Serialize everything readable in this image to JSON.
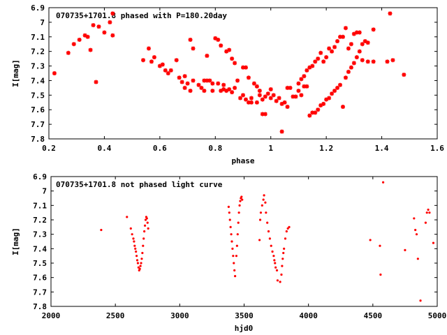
{
  "chart_data": [
    {
      "type": "scatter",
      "title": "070735+1701.8 phased with P=180.20day",
      "xlabel": "phase",
      "ylabel": "I[mag]",
      "xlim": [
        0.2,
        1.6
      ],
      "ylim": [
        7.8,
        6.9
      ],
      "y_inverted": true,
      "xticks": [
        0.2,
        0.4,
        0.6,
        0.8,
        1.0,
        1.2,
        1.4,
        1.6
      ],
      "xtick_labels": [
        "0.2",
        "0.4",
        "0.6",
        "0.8",
        "1",
        "1.2",
        "1.4",
        "1.6"
      ],
      "yticks": [
        6.9,
        7.0,
        7.1,
        7.2,
        7.3,
        7.4,
        7.5,
        7.6,
        7.7,
        7.8
      ],
      "ytick_labels": [
        "6.9",
        "7",
        "7.1",
        "7.2",
        "7.3",
        "7.4",
        "7.5",
        "7.6",
        "7.7",
        "7.8"
      ],
      "grid": false,
      "marker": "star",
      "color": "#ff0000",
      "points": [
        [
          0.22,
          7.35
        ],
        [
          0.27,
          7.21
        ],
        [
          0.29,
          7.15
        ],
        [
          0.31,
          7.12
        ],
        [
          0.33,
          7.09
        ],
        [
          0.34,
          7.1
        ],
        [
          0.35,
          7.19
        ],
        [
          0.36,
          7.02
        ],
        [
          0.37,
          7.41
        ],
        [
          0.38,
          7.03
        ],
        [
          0.4,
          7.07
        ],
        [
          0.42,
          7.0
        ],
        [
          0.43,
          7.09
        ],
        [
          0.43,
          6.94
        ],
        [
          0.54,
          7.26
        ],
        [
          0.56,
          7.18
        ],
        [
          0.57,
          7.27
        ],
        [
          0.58,
          7.24
        ],
        [
          0.6,
          7.3
        ],
        [
          0.61,
          7.29
        ],
        [
          0.62,
          7.33
        ],
        [
          0.63,
          7.35
        ],
        [
          0.64,
          7.33
        ],
        [
          0.66,
          7.26
        ],
        [
          0.67,
          7.38
        ],
        [
          0.68,
          7.41
        ],
        [
          0.69,
          7.37
        ],
        [
          0.69,
          7.45
        ],
        [
          0.7,
          7.42
        ],
        [
          0.71,
          7.47
        ],
        [
          0.71,
          7.12
        ],
        [
          0.72,
          7.4
        ],
        [
          0.72,
          7.18
        ],
        [
          0.74,
          7.43
        ],
        [
          0.75,
          7.45
        ],
        [
          0.76,
          7.47
        ],
        [
          0.76,
          7.4
        ],
        [
          0.77,
          7.4
        ],
        [
          0.77,
          7.23
        ],
        [
          0.78,
          7.4
        ],
        [
          0.79,
          7.42
        ],
        [
          0.79,
          7.47
        ],
        [
          0.8,
          7.11
        ],
        [
          0.81,
          7.12
        ],
        [
          0.81,
          7.42
        ],
        [
          0.82,
          7.47
        ],
        [
          0.82,
          7.16
        ],
        [
          0.83,
          7.46
        ],
        [
          0.83,
          7.43
        ],
        [
          0.84,
          7.47
        ],
        [
          0.84,
          7.2
        ],
        [
          0.85,
          7.46
        ],
        [
          0.85,
          7.19
        ],
        [
          0.86,
          7.48
        ],
        [
          0.86,
          7.25
        ],
        [
          0.87,
          7.45
        ],
        [
          0.87,
          7.28
        ],
        [
          0.88,
          7.4
        ],
        [
          0.89,
          7.52
        ],
        [
          0.9,
          7.31
        ],
        [
          0.9,
          7.5
        ],
        [
          0.91,
          7.31
        ],
        [
          0.91,
          7.53
        ],
        [
          0.92,
          7.55
        ],
        [
          0.92,
          7.38
        ],
        [
          0.93,
          7.52
        ],
        [
          0.93,
          7.55
        ],
        [
          0.94,
          7.42
        ],
        [
          0.95,
          7.44
        ],
        [
          0.95,
          7.55
        ],
        [
          0.96,
          7.5
        ],
        [
          0.96,
          7.47
        ],
        [
          0.97,
          7.63
        ],
        [
          0.97,
          7.53
        ],
        [
          0.98,
          7.63
        ],
        [
          0.98,
          7.51
        ],
        [
          0.99,
          7.49
        ],
        [
          1.0,
          7.46
        ],
        [
          1.0,
          7.52
        ],
        [
          1.01,
          7.5
        ],
        [
          1.02,
          7.54
        ],
        [
          1.03,
          7.52
        ],
        [
          1.04,
          7.56
        ],
        [
          1.04,
          7.75
        ],
        [
          1.05,
          7.55
        ],
        [
          1.06,
          7.58
        ],
        [
          1.06,
          7.45
        ],
        [
          1.07,
          7.45
        ],
        [
          1.08,
          7.51
        ],
        [
          1.09,
          7.51
        ],
        [
          1.1,
          7.42
        ],
        [
          1.1,
          7.47
        ],
        [
          1.11,
          7.5
        ],
        [
          1.11,
          7.39
        ],
        [
          1.12,
          7.37
        ],
        [
          1.12,
          7.44
        ],
        [
          1.13,
          7.33
        ],
        [
          1.13,
          7.44
        ],
        [
          1.14,
          7.31
        ],
        [
          1.14,
          7.64
        ],
        [
          1.15,
          7.3
        ],
        [
          1.15,
          7.62
        ],
        [
          1.16,
          7.62
        ],
        [
          1.16,
          7.27
        ],
        [
          1.17,
          7.6
        ],
        [
          1.17,
          7.25
        ],
        [
          1.18,
          7.57
        ],
        [
          1.18,
          7.21
        ],
        [
          1.19,
          7.56
        ],
        [
          1.19,
          7.27
        ],
        [
          1.2,
          7.53
        ],
        [
          1.2,
          7.24
        ],
        [
          1.21,
          7.52
        ],
        [
          1.21,
          7.18
        ],
        [
          1.22,
          7.49
        ],
        [
          1.22,
          7.2
        ],
        [
          1.23,
          7.47
        ],
        [
          1.23,
          7.17
        ],
        [
          1.24,
          7.45
        ],
        [
          1.24,
          7.13
        ],
        [
          1.25,
          7.43
        ],
        [
          1.25,
          7.1
        ],
        [
          1.26,
          7.58
        ],
        [
          1.26,
          7.1
        ],
        [
          1.27,
          7.38
        ],
        [
          1.27,
          7.04
        ],
        [
          1.28,
          7.34
        ],
        [
          1.28,
          7.18
        ],
        [
          1.29,
          7.31
        ],
        [
          1.29,
          7.15
        ],
        [
          1.3,
          7.28
        ],
        [
          1.3,
          7.08
        ],
        [
          1.31,
          7.24
        ],
        [
          1.31,
          7.07
        ],
        [
          1.32,
          7.2
        ],
        [
          1.32,
          7.07
        ],
        [
          1.33,
          7.15
        ],
        [
          1.33,
          7.26
        ],
        [
          1.34,
          7.13
        ],
        [
          1.35,
          7.27
        ],
        [
          1.35,
          7.14
        ],
        [
          1.37,
          7.27
        ],
        [
          1.37,
          7.05
        ],
        [
          1.42,
          7.27
        ],
        [
          1.43,
          6.94
        ],
        [
          1.44,
          7.26
        ],
        [
          1.48,
          7.36
        ]
      ]
    },
    {
      "type": "scatter",
      "title": "070735+1701.8 not phased light curve",
      "xlabel": "hjd0",
      "ylabel": "I[mag]",
      "xlim": [
        2000,
        5000
      ],
      "ylim": [
        7.8,
        6.9
      ],
      "y_inverted": true,
      "xticks": [
        2000,
        2500,
        3000,
        3500,
        4000,
        4500,
        5000
      ],
      "xtick_labels": [
        "2000",
        "2500",
        "3000",
        "3500",
        "4000",
        "4500",
        "5000"
      ],
      "yticks": [
        6.9,
        7.0,
        7.1,
        7.2,
        7.3,
        7.4,
        7.5,
        7.6,
        7.7,
        7.8
      ],
      "ytick_labels": [
        "6.9",
        "7",
        "7.1",
        "7.2",
        "7.3",
        "7.4",
        "7.5",
        "7.6",
        "7.7",
        "7.8"
      ],
      "grid": false,
      "marker": "dot",
      "color": "#ff0000",
      "points": [
        [
          2390,
          7.27
        ],
        [
          2590,
          7.18
        ],
        [
          2620,
          7.26
        ],
        [
          2630,
          7.3
        ],
        [
          2640,
          7.33
        ],
        [
          2645,
          7.35
        ],
        [
          2650,
          7.38
        ],
        [
          2655,
          7.4
        ],
        [
          2660,
          7.42
        ],
        [
          2665,
          7.45
        ],
        [
          2670,
          7.48
        ],
        [
          2675,
          7.5
        ],
        [
          2680,
          7.53
        ],
        [
          2685,
          7.55
        ],
        [
          2690,
          7.54
        ],
        [
          2695,
          7.52
        ],
        [
          2700,
          7.5
        ],
        [
          2705,
          7.47
        ],
        [
          2710,
          7.43
        ],
        [
          2715,
          7.38
        ],
        [
          2720,
          7.33
        ],
        [
          2725,
          7.28
        ],
        [
          2730,
          7.24
        ],
        [
          2735,
          7.2
        ],
        [
          2740,
          7.18
        ],
        [
          2745,
          7.19
        ],
        [
          2750,
          7.22
        ],
        [
          2755,
          7.26
        ],
        [
          3380,
          7.11
        ],
        [
          3385,
          7.15
        ],
        [
          3390,
          7.2
        ],
        [
          3395,
          7.25
        ],
        [
          3400,
          7.3
        ],
        [
          3405,
          7.35
        ],
        [
          3410,
          7.4
        ],
        [
          3415,
          7.45
        ],
        [
          3420,
          7.5
        ],
        [
          3425,
          7.55
        ],
        [
          3430,
          7.59
        ],
        [
          3440,
          7.45
        ],
        [
          3445,
          7.38
        ],
        [
          3450,
          7.3
        ],
        [
          3455,
          7.22
        ],
        [
          3460,
          7.15
        ],
        [
          3465,
          7.1
        ],
        [
          3470,
          7.07
        ],
        [
          3475,
          7.05
        ],
        [
          3480,
          7.04
        ],
        [
          3485,
          7.06
        ],
        [
          3620,
          7.34
        ],
        [
          3625,
          7.2
        ],
        [
          3630,
          7.15
        ],
        [
          3640,
          7.1
        ],
        [
          3650,
          7.06
        ],
        [
          3655,
          7.03
        ],
        [
          3665,
          7.08
        ],
        [
          3670,
          7.15
        ],
        [
          3680,
          7.22
        ],
        [
          3690,
          7.28
        ],
        [
          3700,
          7.33
        ],
        [
          3710,
          7.38
        ],
        [
          3720,
          7.42
        ],
        [
          3730,
          7.45
        ],
        [
          3735,
          7.48
        ],
        [
          3740,
          7.5
        ],
        [
          3745,
          7.53
        ],
        [
          3755,
          7.55
        ],
        [
          3760,
          7.62
        ],
        [
          3780,
          7.63
        ],
        [
          3790,
          7.58
        ],
        [
          3795,
          7.52
        ],
        [
          3800,
          7.47
        ],
        [
          3805,
          7.43
        ],
        [
          3810,
          7.4
        ],
        [
          3820,
          7.33
        ],
        [
          3830,
          7.28
        ],
        [
          3840,
          7.26
        ],
        [
          3850,
          7.25
        ],
        [
          4480,
          7.34
        ],
        [
          4555,
          7.38
        ],
        [
          4560,
          7.58
        ],
        [
          4580,
          6.94
        ],
        [
          4750,
          7.41
        ],
        [
          4820,
          7.19
        ],
        [
          4830,
          7.27
        ],
        [
          4840,
          7.3
        ],
        [
          4850,
          7.47
        ],
        [
          4870,
          7.76
        ],
        [
          4910,
          7.22
        ],
        [
          4920,
          7.15
        ],
        [
          4930,
          7.13
        ],
        [
          4940,
          7.15
        ],
        [
          4970,
          7.36
        ]
      ]
    }
  ]
}
